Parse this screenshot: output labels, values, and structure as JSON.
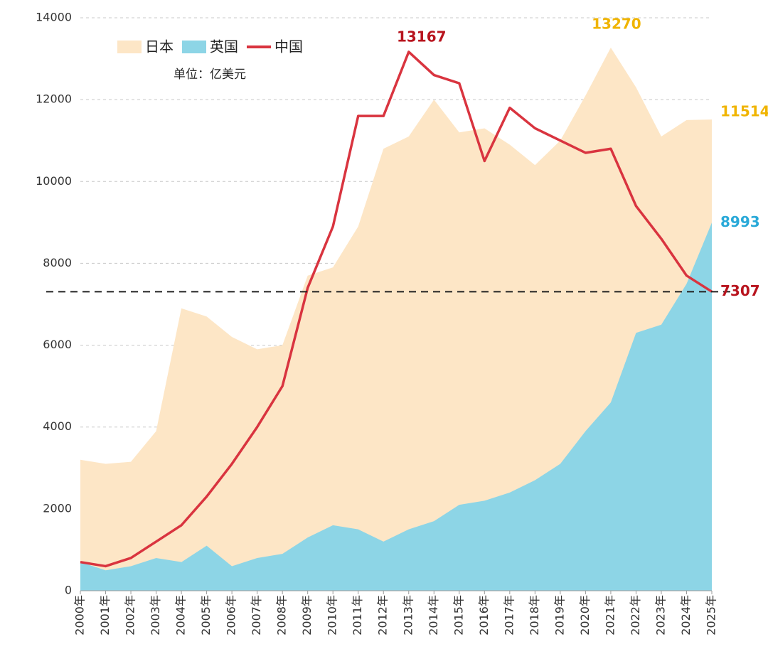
{
  "chart_data": {
    "type": "area-line",
    "subtitle": "单位：亿美元",
    "x": [
      2000,
      2001,
      2002,
      2003,
      2004,
      2005,
      2006,
      2007,
      2008,
      2009,
      2010,
      2011,
      2012,
      2013,
      2014,
      2015,
      2016,
      2017,
      2018,
      2019,
      2020,
      2021,
      2022,
      2023,
      2024,
      2025
    ],
    "xlim": [
      2000,
      2025
    ],
    "xticks": [
      {
        "value": 2000,
        "label": "2000年"
      },
      {
        "value": 2001,
        "label": "2001年"
      },
      {
        "value": 2002,
        "label": "2002年"
      },
      {
        "value": 2003,
        "label": "2003年"
      },
      {
        "value": 2004,
        "label": "2004年"
      },
      {
        "value": 2005,
        "label": "2005年"
      },
      {
        "value": 2006,
        "label": "2006年"
      },
      {
        "value": 2007,
        "label": "2007年"
      },
      {
        "value": 2008,
        "label": "2008年"
      },
      {
        "value": 2009,
        "label": "2009年"
      },
      {
        "value": 2010,
        "label": "2010年"
      },
      {
        "value": 2011,
        "label": "2011年"
      },
      {
        "value": 2012,
        "label": "2012年"
      },
      {
        "value": 2013,
        "label": "2013年"
      },
      {
        "value": 2014,
        "label": "2014年"
      },
      {
        "value": 2015,
        "label": "2015年"
      },
      {
        "value": 2016,
        "label": "2016年"
      },
      {
        "value": 2017,
        "label": "2017年"
      },
      {
        "value": 2018,
        "label": "2018年"
      },
      {
        "value": 2019,
        "label": "2019年"
      },
      {
        "value": 2020,
        "label": "2020年"
      },
      {
        "value": 2021,
        "label": "2021年"
      },
      {
        "value": 2022,
        "label": "2022年"
      },
      {
        "value": 2023,
        "label": "2023年"
      },
      {
        "value": 2024,
        "label": "2024年"
      },
      {
        "value": 2025,
        "label": "2025年"
      }
    ],
    "ylim": [
      0,
      14000
    ],
    "yticks": [
      0,
      2000,
      4000,
      6000,
      8000,
      10000,
      12000,
      14000
    ],
    "grid": true,
    "series": [
      {
        "name": "日本",
        "kind": "area",
        "color": "#fde6c6",
        "label_color": "#f0b400",
        "values": [
          3200,
          3100,
          3150,
          3900,
          6900,
          6700,
          6200,
          5900,
          6000,
          7700,
          7900,
          8900,
          10800,
          11100,
          12000,
          11200,
          11300,
          10900,
          10400,
          11000,
          12100,
          13270,
          12300,
          11100,
          11500,
          11514
        ]
      },
      {
        "name": "英国",
        "kind": "area",
        "color": "#8dd5e6",
        "label_color": "#29a9d8",
        "values": [
          700,
          500,
          600,
          800,
          700,
          1100,
          600,
          800,
          900,
          1300,
          1600,
          1500,
          1200,
          1500,
          1700,
          2100,
          2200,
          2400,
          2700,
          3100,
          3900,
          4600,
          6300,
          6500,
          7500,
          8993
        ]
      },
      {
        "name": "中国",
        "kind": "line",
        "color": "#d9343f",
        "label_color": "#b8141e",
        "values": [
          700,
          600,
          800,
          1200,
          1600,
          2300,
          3100,
          4000,
          5000,
          7400,
          8900,
          11600,
          11600,
          13167,
          12600,
          12400,
          10500,
          11800,
          11300,
          11000,
          10700,
          10800,
          9400,
          8600,
          7700,
          7307
        ]
      }
    ]
  }
}
